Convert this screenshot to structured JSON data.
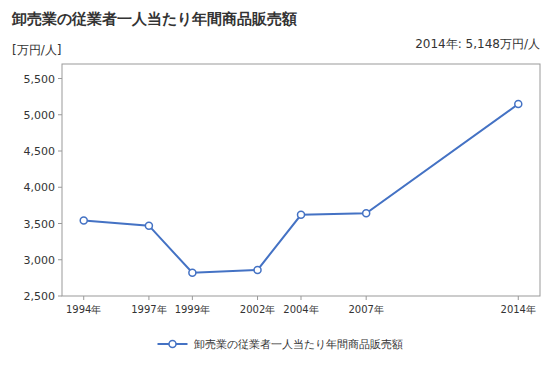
{
  "chart_data": {
    "type": "line",
    "title": "卸売業の従業者一人当たり年間商品販売額",
    "y_label": "[万円/人]",
    "annotation": "2014年: 5,148万円/人",
    "x": [
      1994,
      1997,
      1999,
      2002,
      2004,
      2007,
      2014
    ],
    "xlim": [
      1993,
      2015
    ],
    "xticks": [
      {
        "value": 1994,
        "label": "1994年"
      },
      {
        "value": 1997,
        "label": "1997年"
      },
      {
        "value": 1999,
        "label": "1999年"
      },
      {
        "value": 2002,
        "label": "2002年"
      },
      {
        "value": 2004,
        "label": "2004年"
      },
      {
        "value": 2007,
        "label": "2007年"
      },
      {
        "value": 2014,
        "label": "2014年"
      }
    ],
    "ylim": [
      2500,
      5700
    ],
    "yticks": [
      {
        "value": 2500,
        "label": "2,500"
      },
      {
        "value": 3000,
        "label": "3,000"
      },
      {
        "value": 3500,
        "label": "3,500"
      },
      {
        "value": 4000,
        "label": "4,000"
      },
      {
        "value": 4500,
        "label": "4,500"
      },
      {
        "value": 5000,
        "label": "5,000"
      },
      {
        "value": 5500,
        "label": "5,500"
      }
    ],
    "series": [
      {
        "name": "卸売業の従業者一人当たり年間商品販売額",
        "color": "#4472C4",
        "marker": "circle",
        "values": [
          3540,
          3470,
          2820,
          2860,
          3620,
          3640,
          5148
        ]
      }
    ],
    "grid": false,
    "legend": "bottom"
  }
}
